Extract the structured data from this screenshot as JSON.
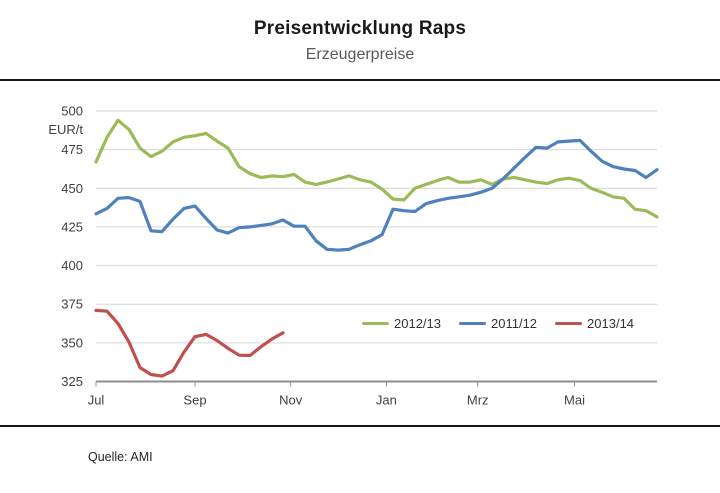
{
  "header": {
    "title": "Preisentwicklung Raps",
    "subtitle": "Erzeugerpreise"
  },
  "footer": {
    "source": "Quelle: AMI"
  },
  "colors": {
    "series_green": "#9bbb59",
    "series_blue": "#4f81bd",
    "series_red": "#c0504d",
    "grid": "#d6d6d6",
    "axis": "#8c8c8c",
    "tick_label": "#404040",
    "separator": "#161616"
  },
  "chart_data": {
    "type": "line",
    "title": "Preisentwicklung Raps",
    "subtitle": "Erzeugerpreise",
    "ylabel": "EUR/t",
    "xlabel": "",
    "ylim": [
      325,
      500
    ],
    "yticks": [
      325,
      350,
      375,
      400,
      425,
      450,
      475,
      500
    ],
    "grid": true,
    "x_unit": "week_of_marketing_year_starting_july",
    "weeks_total": 51,
    "xticks": [
      {
        "week": 0,
        "label": "Jul"
      },
      {
        "week": 9,
        "label": "Sep"
      },
      {
        "week": 17.7,
        "label": "Nov"
      },
      {
        "week": 26.4,
        "label": "Jan"
      },
      {
        "week": 34.7,
        "label": "Mrz"
      },
      {
        "week": 43.5,
        "label": "Mai"
      }
    ],
    "legend_position": "inside-lower-right",
    "series": [
      {
        "name": "2012/13",
        "color": "#9bbb59",
        "start_week": 0,
        "values": [
          467,
          483,
          494,
          488,
          476,
          470.5,
          474,
          480,
          483,
          484,
          485.5,
          480.5,
          476,
          464,
          459.5,
          457,
          458,
          457.5,
          459,
          454,
          452.5,
          454,
          456,
          458,
          455.5,
          454,
          449.5,
          443,
          442.5,
          450,
          452.5,
          455,
          457,
          454,
          454,
          455.5,
          452.5,
          456,
          457,
          455.5,
          454,
          453,
          455.5,
          456.5,
          455,
          450,
          447.5,
          444.5,
          443.5,
          436.5,
          435.5,
          431.5
        ]
      },
      {
        "name": "2011/12",
        "color": "#4f81bd",
        "start_week": 0,
        "values": [
          433.5,
          437,
          443.5,
          444,
          441.5,
          422.5,
          422,
          430,
          437,
          438.5,
          430.5,
          423,
          421,
          424.5,
          425,
          426,
          427,
          429.5,
          425.5,
          425.5,
          416,
          410.5,
          410,
          410.5,
          413.5,
          416,
          420,
          436.5,
          435.5,
          435,
          440,
          442,
          443.5,
          444.5,
          445.5,
          447.5,
          450,
          456,
          463,
          470,
          476.5,
          476,
          480,
          480.5,
          481,
          474,
          467.5,
          464,
          462.5,
          461.5,
          457,
          462
        ]
      },
      {
        "name": "2013/14",
        "color": "#c0504d",
        "start_week": 0,
        "values": [
          371,
          370.5,
          362.5,
          350.5,
          334,
          329.5,
          328.5,
          332,
          344,
          354,
          355.5,
          351.5,
          346.5,
          342,
          341.8,
          347.5,
          352.5,
          356.5
        ]
      }
    ]
  }
}
